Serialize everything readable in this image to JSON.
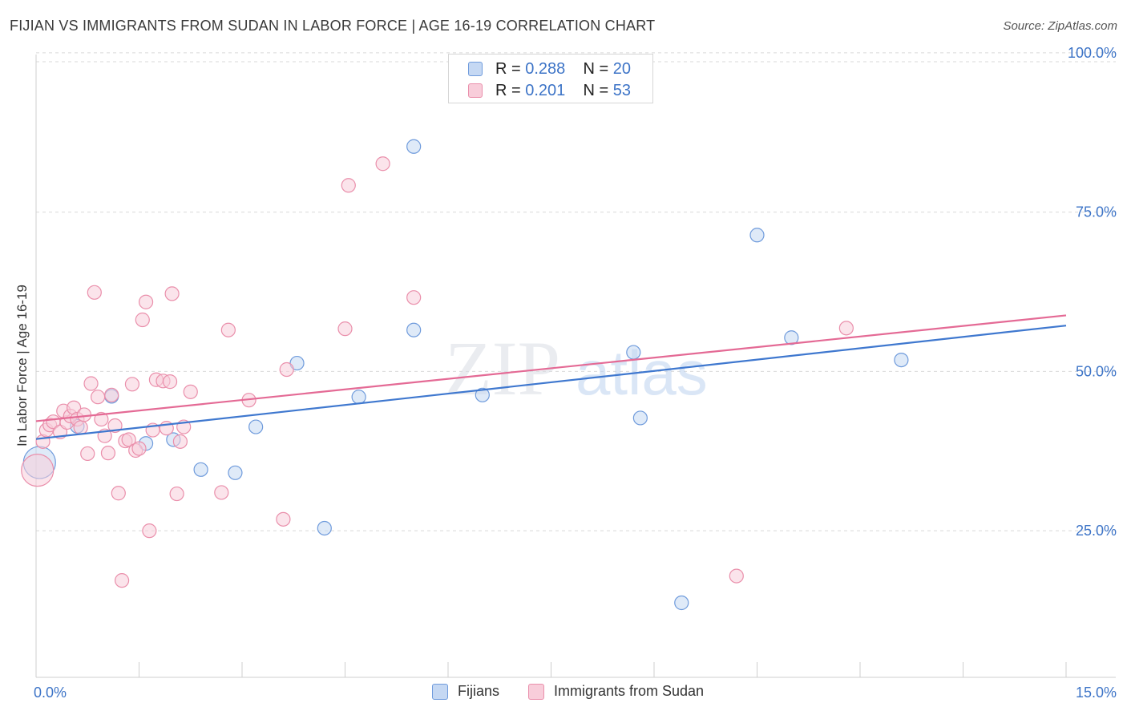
{
  "title": "FIJIAN VS IMMIGRANTS FROM SUDAN IN LABOR FORCE | AGE 16-19 CORRELATION CHART",
  "source": "Source: ZipAtlas.com",
  "watermark": {
    "zip": "ZIP",
    "atlas": "atlas"
  },
  "legend": {
    "r_label": "R =",
    "n_label": "N =",
    "rows": [
      {
        "r": "0.288",
        "n": "20"
      },
      {
        "r": "0.201",
        "n": "53"
      }
    ]
  },
  "colors": {
    "fijians_fill": "#c5d8f3",
    "fijians_stroke": "#6f9bdc",
    "fijians_line": "#3f78cf",
    "sudan_fill": "#f8cdda",
    "sudan_stroke": "#ea8fab",
    "sudan_line": "#e46a95",
    "tick_label": "#3d74c7",
    "grid": "#d9d9d9"
  },
  "chart_data": {
    "type": "scatter",
    "xlabel": "",
    "ylabel": "In Labor Force | Age 16-19",
    "xlim": [
      0,
      15
    ],
    "ylim": [
      2,
      102
    ],
    "x_tick_labels": [
      {
        "value": 0,
        "label": "0.0%"
      },
      {
        "value": 15,
        "label": "15.0%"
      }
    ],
    "y_tick_labels": [
      {
        "value": 25,
        "label": "25.0%"
      },
      {
        "value": 50,
        "label": "50.0%"
      },
      {
        "value": 75,
        "label": "75.0%"
      },
      {
        "value": 100,
        "label": "100.0%"
      }
    ],
    "grid": true,
    "legend_position": "top-center",
    "series": [
      {
        "name": "Fijians",
        "color": "#6f9bdc",
        "trend": {
          "x": [
            0,
            15
          ],
          "y": [
            39.4,
            57.2
          ]
        },
        "points": [
          {
            "x": 0.05,
            "y": 35.7,
            "big": true
          },
          {
            "x": 0.6,
            "y": 41.4
          },
          {
            "x": 1.1,
            "y": 46.1
          },
          {
            "x": 1.6,
            "y": 38.7
          },
          {
            "x": 2.0,
            "y": 39.3
          },
          {
            "x": 2.4,
            "y": 34.6
          },
          {
            "x": 2.9,
            "y": 34.1
          },
          {
            "x": 3.2,
            "y": 41.3
          },
          {
            "x": 3.8,
            "y": 51.3
          },
          {
            "x": 4.2,
            "y": 25.4
          },
          {
            "x": 4.7,
            "y": 46.0
          },
          {
            "x": 5.5,
            "y": 56.5
          },
          {
            "x": 5.5,
            "y": 85.3
          },
          {
            "x": 6.5,
            "y": 46.3
          },
          {
            "x": 8.7,
            "y": 53.0
          },
          {
            "x": 8.8,
            "y": 42.7
          },
          {
            "x": 9.4,
            "y": 13.7
          },
          {
            "x": 10.5,
            "y": 71.4
          },
          {
            "x": 11.0,
            "y": 55.3
          },
          {
            "x": 12.6,
            "y": 51.8
          }
        ]
      },
      {
        "name": "Immigrants from Sudan",
        "color": "#ea8fab",
        "trend": {
          "x": [
            0,
            15
          ],
          "y": [
            42.2,
            58.8
          ]
        },
        "points": [
          {
            "x": 0.02,
            "y": 34.5,
            "big": true
          },
          {
            "x": 0.1,
            "y": 39.0
          },
          {
            "x": 0.15,
            "y": 40.8
          },
          {
            "x": 0.2,
            "y": 41.6
          },
          {
            "x": 0.25,
            "y": 42.1
          },
          {
            "x": 0.35,
            "y": 40.5
          },
          {
            "x": 0.45,
            "y": 42.0
          },
          {
            "x": 0.4,
            "y": 43.8
          },
          {
            "x": 0.5,
            "y": 43.0
          },
          {
            "x": 0.55,
            "y": 44.3
          },
          {
            "x": 0.6,
            "y": 42.5
          },
          {
            "x": 0.65,
            "y": 41.2
          },
          {
            "x": 0.7,
            "y": 43.2
          },
          {
            "x": 0.75,
            "y": 37.1
          },
          {
            "x": 0.8,
            "y": 48.1
          },
          {
            "x": 0.85,
            "y": 62.4
          },
          {
            "x": 0.9,
            "y": 46.0
          },
          {
            "x": 0.95,
            "y": 42.5
          },
          {
            "x": 1.0,
            "y": 39.9
          },
          {
            "x": 1.05,
            "y": 37.2
          },
          {
            "x": 1.1,
            "y": 46.3
          },
          {
            "x": 1.15,
            "y": 41.5
          },
          {
            "x": 1.2,
            "y": 30.9
          },
          {
            "x": 1.25,
            "y": 17.2
          },
          {
            "x": 1.3,
            "y": 39.1
          },
          {
            "x": 1.35,
            "y": 39.3
          },
          {
            "x": 1.4,
            "y": 48.0
          },
          {
            "x": 1.45,
            "y": 37.6
          },
          {
            "x": 1.5,
            "y": 37.9
          },
          {
            "x": 1.55,
            "y": 58.1
          },
          {
            "x": 1.6,
            "y": 60.9
          },
          {
            "x": 1.65,
            "y": 25.0
          },
          {
            "x": 1.7,
            "y": 40.8
          },
          {
            "x": 1.75,
            "y": 48.7
          },
          {
            "x": 1.85,
            "y": 48.5
          },
          {
            "x": 1.9,
            "y": 41.1
          },
          {
            "x": 1.95,
            "y": 48.4
          },
          {
            "x": 1.98,
            "y": 62.2
          },
          {
            "x": 2.05,
            "y": 30.8
          },
          {
            "x": 2.1,
            "y": 39.0
          },
          {
            "x": 2.15,
            "y": 41.3
          },
          {
            "x": 2.25,
            "y": 46.8
          },
          {
            "x": 2.7,
            "y": 31.0
          },
          {
            "x": 2.8,
            "y": 56.5
          },
          {
            "x": 3.1,
            "y": 45.5
          },
          {
            "x": 3.6,
            "y": 26.8
          },
          {
            "x": 3.65,
            "y": 50.3
          },
          {
            "x": 4.5,
            "y": 56.7
          },
          {
            "x": 4.55,
            "y": 79.2
          },
          {
            "x": 5.05,
            "y": 82.6
          },
          {
            "x": 5.5,
            "y": 61.6
          },
          {
            "x": 10.2,
            "y": 17.9
          },
          {
            "x": 11.8,
            "y": 56.8
          }
        ]
      }
    ]
  }
}
